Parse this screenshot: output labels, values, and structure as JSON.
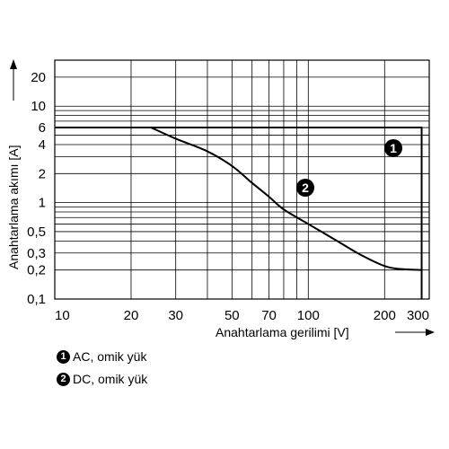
{
  "chart_data": {
    "type": "line",
    "xscale": "log",
    "yscale": "log",
    "xlim": [
      10,
      300
    ],
    "ylim": [
      0.1,
      30
    ],
    "xticks": [
      10,
      20,
      30,
      50,
      70,
      100,
      200,
      300
    ],
    "yticks": [
      0.1,
      0.2,
      0.3,
      0.5,
      1,
      2,
      4,
      6,
      10,
      20
    ],
    "xtick_labels": [
      "10",
      "20",
      "30",
      "50",
      "70",
      "100",
      "200",
      "300"
    ],
    "ytick_labels": [
      "0,1",
      "0,2",
      "0,3",
      "0,5",
      "1",
      "2",
      "4",
      "6",
      "10",
      "20"
    ],
    "xgrid": [
      20,
      30,
      40,
      50,
      60,
      70,
      80,
      90,
      100,
      200,
      300
    ],
    "ygrid": [
      0.2,
      0.3,
      0.4,
      0.5,
      0.6,
      0.7,
      0.8,
      0.9,
      1,
      2,
      3,
      4,
      5,
      6,
      7,
      8,
      9,
      10,
      20
    ],
    "grid": true,
    "xlabel": "Anahtarlama gerilimi [V]",
    "ylabel": "Anahtarlama akımı [A]",
    "series": [
      {
        "name": "AC, omik yük",
        "marker": "1",
        "points": [
          [
            10,
            6
          ],
          [
            280,
            6
          ],
          [
            280,
            0.1
          ]
        ]
      },
      {
        "name": "DC, omik yük",
        "marker": "2",
        "points": [
          [
            24,
            6
          ],
          [
            30,
            4.6
          ],
          [
            40,
            3.4
          ],
          [
            50,
            2.4
          ],
          [
            60,
            1.6
          ],
          [
            70,
            1.15
          ],
          [
            80,
            0.85
          ],
          [
            100,
            0.6
          ],
          [
            130,
            0.4
          ],
          [
            160,
            0.29
          ],
          [
            200,
            0.22
          ],
          [
            230,
            0.205
          ],
          [
            280,
            0.2
          ]
        ]
      }
    ],
    "legend": [
      {
        "marker": "1",
        "label": "AC, omik yük"
      },
      {
        "marker": "2",
        "label": "DC, omik yük"
      }
    ]
  }
}
